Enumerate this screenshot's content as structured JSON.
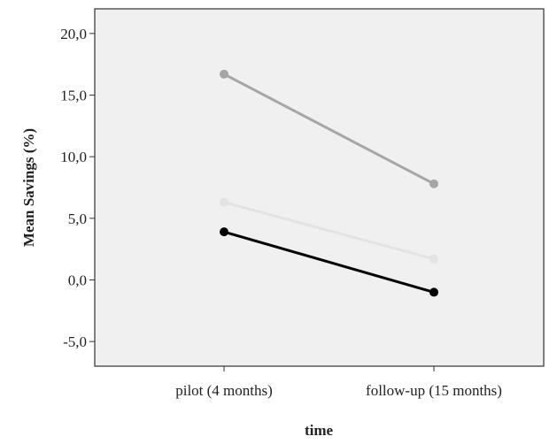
{
  "chart_data": {
    "type": "line",
    "title": "",
    "xlabel": "time",
    "ylabel": "Mean Savings (%)",
    "categories": [
      "pilot (4 months)",
      "follow-up (15 months)"
    ],
    "ylim": [
      -7.0,
      22.0
    ],
    "yticks": [
      -5.0,
      0.0,
      5.0,
      10.0,
      15.0,
      20.0
    ],
    "ytick_labels": [
      "-5,0",
      "0,0",
      "5,0",
      "10,0",
      "15,0",
      "20,0"
    ],
    "grid": false,
    "legend": "none",
    "plot_background": "#f0f0f0",
    "series": [
      {
        "values": [
          16.7,
          7.8
        ],
        "color": "#a6a6a6"
      },
      {
        "values": [
          6.3,
          1.7
        ],
        "color": "#e3e3e3"
      },
      {
        "values": [
          3.9,
          -1.0
        ],
        "color": "#000000"
      }
    ]
  }
}
